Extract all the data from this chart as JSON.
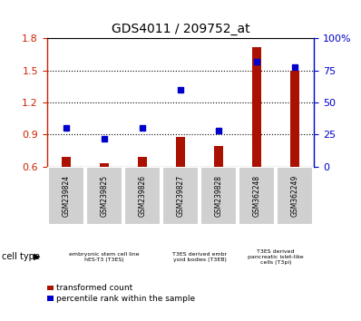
{
  "title": "GDS4011 / 209752_at",
  "samples": [
    "GSM239824",
    "GSM239825",
    "GSM239826",
    "GSM239827",
    "GSM239828",
    "GSM362248",
    "GSM362249"
  ],
  "transformed_count": [
    0.69,
    0.63,
    0.69,
    0.88,
    0.79,
    1.72,
    1.5
  ],
  "percentile_rank": [
    30,
    22,
    30,
    60,
    28,
    82,
    78
  ],
  "ylim_left": [
    0.6,
    1.8
  ],
  "ylim_right": [
    0,
    100
  ],
  "yticks_left": [
    0.6,
    0.9,
    1.2,
    1.5,
    1.8
  ],
  "yticks_right": [
    0,
    25,
    50,
    75,
    100
  ],
  "ytick_labels_right": [
    "0",
    "25",
    "50",
    "75",
    "100%"
  ],
  "dotted_lines": [
    0.9,
    1.2,
    1.5
  ],
  "cell_type_groups": [
    {
      "label": "embryonic stem cell line\nhES-T3 (T3ES)",
      "start": 0,
      "end": 3,
      "color": "#ccffcc"
    },
    {
      "label": "T3ES derived embr\nyoid bodies (T3EB)",
      "start": 3,
      "end": 5,
      "color": "#ccffcc"
    },
    {
      "label": "T3ES derived\npancreatic islet-like\ncells (T3pi)",
      "start": 5,
      "end": 7,
      "color": "#88ee88"
    }
  ],
  "bar_color": "#aa1100",
  "dot_color": "#0000cc",
  "bar_width": 0.25,
  "cell_type_label": "cell type",
  "legend_items": [
    {
      "label": "transformed count",
      "color": "#aa1100"
    },
    {
      "label": "percentile rank within the sample",
      "color": "#0000cc"
    }
  ],
  "sample_box_color": "#d0d0d0",
  "left_axis_color": "#cc2200",
  "right_axis_color": "#0000cc"
}
